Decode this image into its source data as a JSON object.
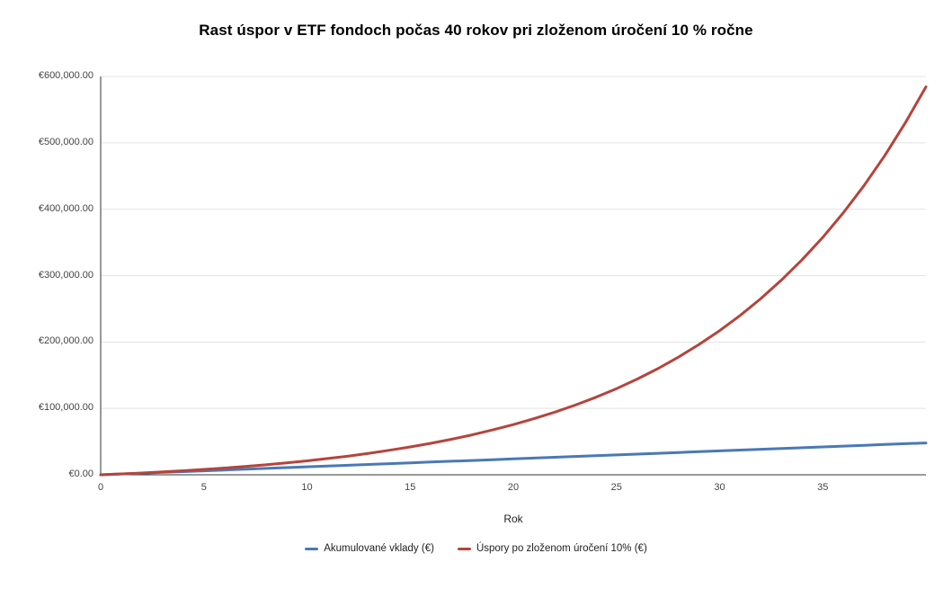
{
  "title": "Rast úspor v ETF fondoch počas 40 rokov pri zloženom úročení 10 % ročne",
  "chart_data": {
    "type": "line",
    "title": "Rast úspor v ETF fondoch počas 40 rokov pri zloženom úročení 10 % ročne",
    "xlabel": "Rok",
    "ylabel": "",
    "xlim": [
      0,
      40
    ],
    "ylim": [
      0,
      600000
    ],
    "grid": true,
    "legend_position": "bottom",
    "x_ticks": [
      0,
      5,
      10,
      15,
      20,
      25,
      30,
      35
    ],
    "y_ticks": {
      "values": [
        0,
        100000,
        200000,
        300000,
        400000,
        500000,
        600000
      ],
      "labels": [
        "€0.00",
        "€100,000.00",
        "€200,000.00",
        "€300,000.00",
        "€400,000.00",
        "€500,000.00",
        "€600,000.00"
      ]
    },
    "x": [
      0,
      1,
      2,
      3,
      4,
      5,
      6,
      7,
      8,
      9,
      10,
      11,
      12,
      13,
      14,
      15,
      16,
      17,
      18,
      19,
      20,
      21,
      22,
      23,
      24,
      25,
      26,
      27,
      28,
      29,
      30,
      31,
      32,
      33,
      34,
      35,
      36,
      37,
      38,
      39,
      40
    ],
    "series": [
      {
        "name": "Akumulované vklady (€)",
        "color": "#4a79b5",
        "values": [
          0,
          1200,
          2400,
          3600,
          4800,
          6000,
          7200,
          8400,
          9600,
          10800,
          12000,
          13200,
          14400,
          15600,
          16800,
          18000,
          19200,
          20400,
          21600,
          22800,
          24000,
          25200,
          26400,
          27600,
          28800,
          30000,
          31200,
          32400,
          33600,
          34800,
          36000,
          37200,
          38400,
          39600,
          40800,
          42000,
          43200,
          44400,
          45600,
          46800,
          48000
        ]
      },
      {
        "name": "Úspory po zloženom úročení 10% (€)",
        "color": "#b5443c",
        "values": [
          0,
          1320,
          2772,
          4369.2,
          6126.12,
          8058.73,
          10184.61,
          12523.07,
          15095.37,
          17924.91,
          21037.4,
          24461.14,
          28227.25,
          32369.98,
          36926.98,
          41939.68,
          47453.64,
          53519.01,
          60190.91,
          67530,
          75603,
          84483.3,
          94251.63,
          104996.79,
          116816.47,
          129818.12,
          144119.93,
          159851.92,
          177157.12,
          196192.83,
          217132.11,
          240165.32,
          265501.85,
          293372.04,
          324029.24,
          357752.17,
          394847.38,
          435652.12,
          480537.33,
          529911.07,
          584222.17
        ]
      }
    ]
  }
}
